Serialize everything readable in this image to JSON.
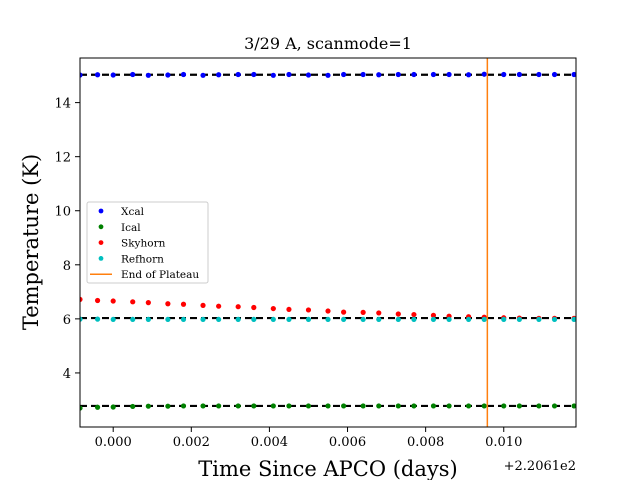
{
  "chart_data": {
    "type": "scatter",
    "title": "3/29 A, scanmode=1",
    "xlabel": "Time Since APCO (days)",
    "ylabel": "Temperature (K)",
    "x_offset_label": "+2.2061e2",
    "xlim": [
      -0.00085,
      0.01185
    ],
    "ylim": [
      2.0,
      15.65
    ],
    "xticks": [
      0.0,
      0.002,
      0.004,
      0.006,
      0.008,
      0.01
    ],
    "xtick_labels": [
      "0.000",
      "0.002",
      "0.004",
      "0.006",
      "0.008",
      "0.010"
    ],
    "yticks": [
      4,
      6,
      8,
      10,
      12,
      14
    ],
    "ytick_labels": [
      "4",
      "6",
      "8",
      "10",
      "12",
      "14"
    ],
    "grid": false,
    "legend_position": "center-left",
    "x": [
      -0.00085,
      -0.0004,
      0.0,
      0.0005,
      0.0009,
      0.0014,
      0.0018,
      0.0023,
      0.0027,
      0.0032,
      0.0036,
      0.0041,
      0.0045,
      0.005,
      0.0055,
      0.0059,
      0.0064,
      0.0068,
      0.0073,
      0.0077,
      0.0082,
      0.0086,
      0.0091,
      0.0095,
      0.01,
      0.0104,
      0.0109,
      0.0113,
      0.0118
    ],
    "series": [
      {
        "name": "Xcal",
        "color": "#0000ff",
        "values": [
          15.02,
          15.03,
          15.02,
          15.04,
          15.01,
          15.02,
          15.04,
          15.01,
          15.03,
          15.04,
          15.04,
          15.01,
          15.04,
          15.02,
          15.01,
          15.04,
          15.04,
          15.03,
          15.04,
          15.04,
          15.04,
          15.04,
          15.03,
          15.05,
          15.04,
          15.04,
          15.04,
          15.04,
          15.04
        ],
        "reference": 15.03
      },
      {
        "name": "Ical",
        "color": "#008000",
        "values": [
          2.7,
          2.73,
          2.74,
          2.76,
          2.77,
          2.77,
          2.78,
          2.78,
          2.78,
          2.78,
          2.78,
          2.78,
          2.78,
          2.78,
          2.78,
          2.78,
          2.78,
          2.78,
          2.78,
          2.78,
          2.78,
          2.78,
          2.78,
          2.78,
          2.78,
          2.78,
          2.78,
          2.78,
          2.78
        ],
        "reference": 2.78
      },
      {
        "name": "Skyhorn",
        "color": "#ff0000",
        "values": [
          6.72,
          6.68,
          6.66,
          6.63,
          6.6,
          6.56,
          6.54,
          6.5,
          6.47,
          6.45,
          6.42,
          6.38,
          6.35,
          6.33,
          6.29,
          6.25,
          6.24,
          6.22,
          6.18,
          6.16,
          6.13,
          6.1,
          6.08,
          6.06,
          6.04,
          6.03,
          6.02,
          6.02,
          6.02
        ],
        "reference": 6.03
      },
      {
        "name": "Refhorn",
        "color": "#00bfbf",
        "values": [
          5.99,
          5.99,
          5.98,
          5.98,
          5.98,
          5.98,
          5.98,
          5.98,
          5.98,
          5.98,
          5.98,
          5.98,
          5.98,
          5.98,
          5.98,
          5.98,
          5.98,
          5.98,
          5.98,
          5.98,
          5.98,
          5.98,
          5.98,
          5.98,
          5.98,
          5.98,
          5.98,
          5.98,
          5.98
        ],
        "reference": 6.03
      }
    ],
    "vline": {
      "name": "End of Plateau",
      "x": 0.00958,
      "color": "#ff7f0e"
    }
  }
}
